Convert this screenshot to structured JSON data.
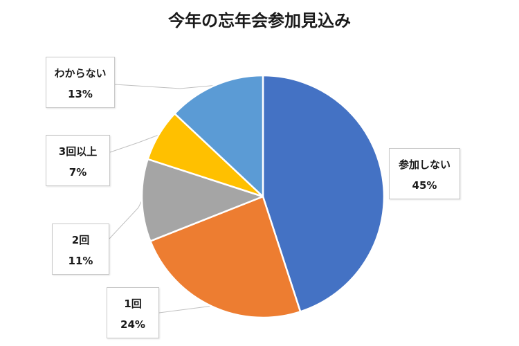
{
  "chart_data": {
    "type": "pie",
    "title": "今年の忘年会参加見込み",
    "start_angle_deg": 0,
    "direction": "clockwise",
    "slices": [
      {
        "label": "参加しない",
        "value": 45,
        "value_label": "45%",
        "color": "#4472C4"
      },
      {
        "label": "1回",
        "value": 24,
        "value_label": "24%",
        "color": "#ED7D31"
      },
      {
        "label": "2回",
        "value": 11,
        "value_label": "11%",
        "color": "#A5A5A5"
      },
      {
        "label": "3回以上",
        "value": 7,
        "value_label": "7%",
        "color": "#FFC000"
      },
      {
        "label": "わからない",
        "value": 13,
        "value_label": "13%",
        "color": "#5B9BD5"
      }
    ],
    "legend": "none"
  }
}
